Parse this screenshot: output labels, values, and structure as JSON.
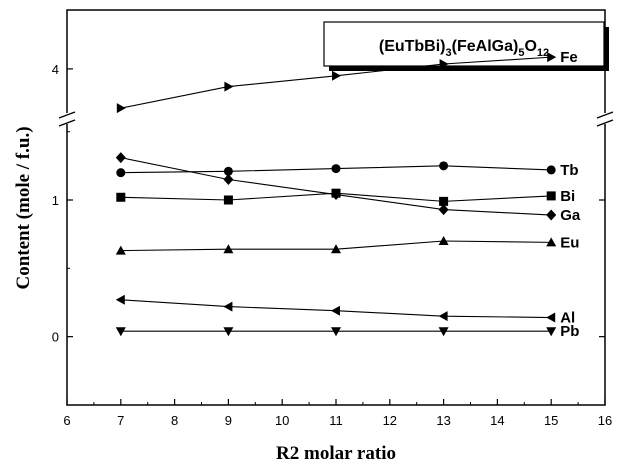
{
  "chart_data": {
    "type": "line",
    "title": {
      "parts": [
        "(EuTbBi)",
        "3",
        "(FeAlGa)",
        "5",
        "O",
        "12"
      ]
    },
    "xlabel": "R2 molar ratio",
    "ylabel": "Content (mole / f.u.)",
    "xlim": [
      6,
      16
    ],
    "x_ticks": [
      "6",
      "7",
      "8",
      "9",
      "10",
      "11",
      "12",
      "13",
      "14",
      "15",
      "16"
    ],
    "ylim_lower": [
      -0.5,
      1.6
    ],
    "ylim_upper": [
      3.5,
      4.6
    ],
    "axis_break": true,
    "y_ticks": [
      "0",
      "1",
      "4"
    ],
    "x": [
      7,
      9,
      11,
      13,
      15
    ],
    "series": [
      {
        "name": "Fe",
        "marker": "triangle-right",
        "values": [
          3.6,
          3.82,
          3.93,
          4.05,
          4.12
        ]
      },
      {
        "name": "Tb",
        "marker": "circle",
        "values": [
          1.2,
          1.21,
          1.23,
          1.25,
          1.22
        ]
      },
      {
        "name": "Bi",
        "marker": "square",
        "values": [
          1.02,
          1.0,
          1.05,
          0.99,
          1.03
        ]
      },
      {
        "name": "Ga",
        "marker": "diamond",
        "values": [
          1.31,
          1.15,
          1.04,
          0.93,
          0.89
        ]
      },
      {
        "name": "Eu",
        "marker": "triangle-up",
        "values": [
          0.63,
          0.64,
          0.64,
          0.7,
          0.69
        ]
      },
      {
        "name": "Al",
        "marker": "triangle-left",
        "values": [
          0.27,
          0.22,
          0.19,
          0.15,
          0.14
        ]
      },
      {
        "name": "Pb",
        "marker": "triangle-down",
        "values": [
          0.04,
          0.04,
          0.04,
          0.04,
          0.04
        ]
      }
    ],
    "legend": "none",
    "grid": false
  }
}
